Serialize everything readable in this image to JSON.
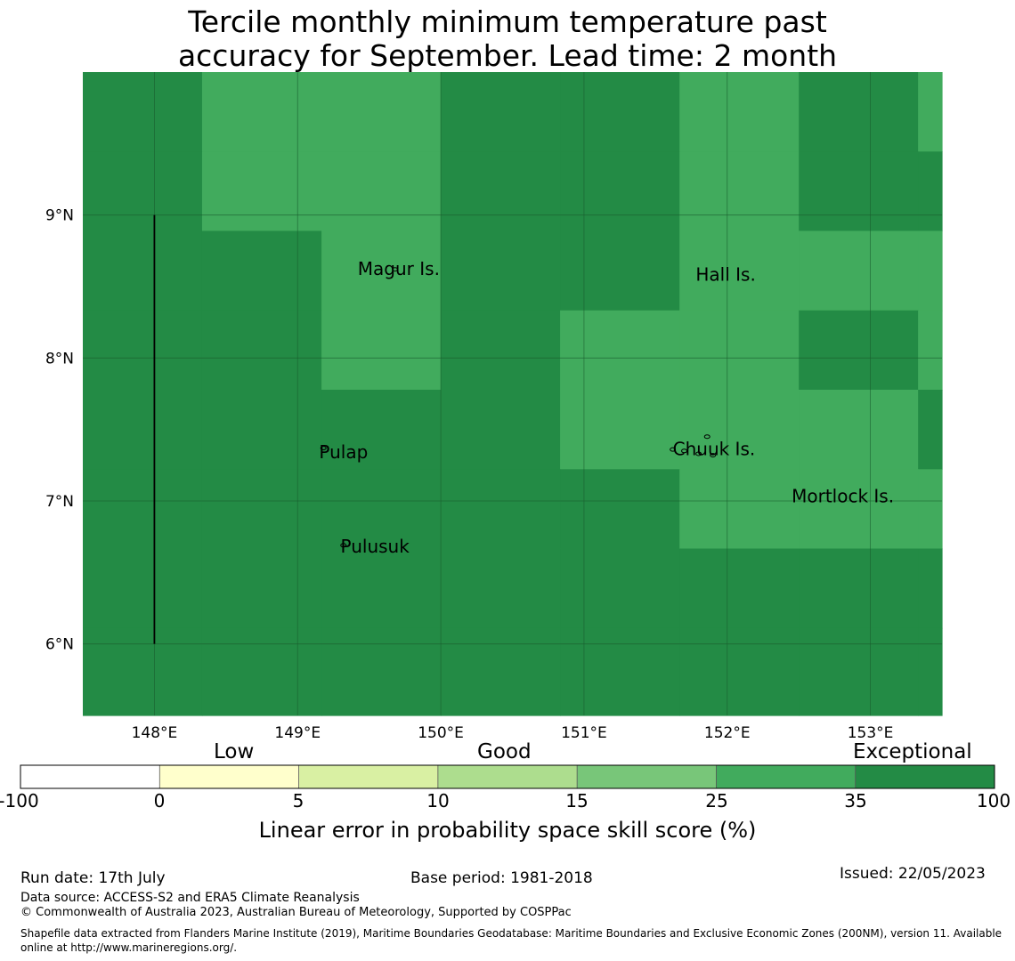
{
  "title_line1": "Tercile monthly minimum temperature past",
  "title_line2": "accuracy for September. Lead time: 2 month",
  "map": {
    "lon_range": [
      147.5,
      153.5
    ],
    "lat_range": [
      5.5,
      10.0
    ],
    "lon_ticks": [
      {
        "v": 148,
        "label": "148°E"
      },
      {
        "v": 149,
        "label": "149°E"
      },
      {
        "v": 150,
        "label": "150°E"
      },
      {
        "v": 151,
        "label": "151°E"
      },
      {
        "v": 152,
        "label": "152°E"
      },
      {
        "v": 153,
        "label": "153°E"
      }
    ],
    "lat_ticks": [
      {
        "v": 9,
        "label": "9°N"
      },
      {
        "v": 8,
        "label": "8°N"
      },
      {
        "v": 7,
        "label": "7°N"
      },
      {
        "v": 6,
        "label": "6°N"
      }
    ],
    "colors": {
      "exceptional": "#238b45",
      "good_high": "#41ab5d"
    },
    "grid_lons": [
      147.5,
      148.333,
      149.167,
      150.0,
      150.833,
      151.667,
      152.5,
      153.333,
      153.5
    ],
    "grid_lats": [
      10.0,
      9.444,
      8.889,
      8.333,
      7.778,
      7.222,
      6.667,
      6.111,
      5.5
    ],
    "cells": [
      [
        "E",
        "G",
        "G",
        "E",
        "E",
        "G",
        "E",
        "G"
      ],
      [
        "E",
        "G",
        "G",
        "E",
        "E",
        "G",
        "E",
        "E"
      ],
      [
        "E",
        "E",
        "G",
        "E",
        "E",
        "G",
        "G",
        "G"
      ],
      [
        "E",
        "E",
        "G",
        "E",
        "G",
        "G",
        "E",
        "G"
      ],
      [
        "E",
        "E",
        "E",
        "E",
        "G",
        "G",
        "G",
        "E"
      ],
      [
        "E",
        "E",
        "E",
        "E",
        "E",
        "G",
        "G",
        "G"
      ],
      [
        "E",
        "E",
        "E",
        "E",
        "E",
        "E",
        "E",
        "E"
      ],
      [
        "E",
        "E",
        "E",
        "E",
        "E",
        "E",
        "E",
        "E"
      ]
    ],
    "places": [
      {
        "name": "Magur Is.",
        "lon": 149.42,
        "lat": 8.58
      },
      {
        "name": "Hall Is.",
        "lon": 151.78,
        "lat": 8.54
      },
      {
        "name": "Pulap",
        "lon": 149.15,
        "lat": 7.3
      },
      {
        "name": "Chuuk Is.",
        "lon": 151.62,
        "lat": 7.32
      },
      {
        "name": "Mortlock Is.",
        "lon": 152.45,
        "lat": 6.99
      },
      {
        "name": "Pulusuk",
        "lon": 149.3,
        "lat": 6.64
      }
    ]
  },
  "colorbar": {
    "headings": [
      "Low",
      "Good",
      "Exceptional"
    ],
    "ticks": [
      "-100",
      "0",
      "5",
      "10",
      "15",
      "25",
      "35",
      "100"
    ],
    "colors": [
      "#ffffff",
      "#ffffcc",
      "#d9f0a3",
      "#addd8e",
      "#78c679",
      "#41ab5d",
      "#238b45"
    ],
    "label": "Linear error in probability space skill score (%)"
  },
  "footer": {
    "run_date": "Run date: 17th July",
    "base_period": "Base period: 1981-2018",
    "issued": "Issued: 22/05/2023",
    "data_source": "Data source: ACCESS-S2 and ERA5 Climate Reanalysis",
    "copyright": "© Commonwealth of Australia 2023, Australian Bureau of Meteorology, Supported by COSPPac",
    "shapefile1": "Shapefile data extracted from Flanders Marine Institute (2019), Maritime Boundaries Geodatabase: Maritime Boundaries and Exclusive Economic Zones (200NM), version 11. Available",
    "shapefile2": "online at http://www.marineregions.org/."
  }
}
